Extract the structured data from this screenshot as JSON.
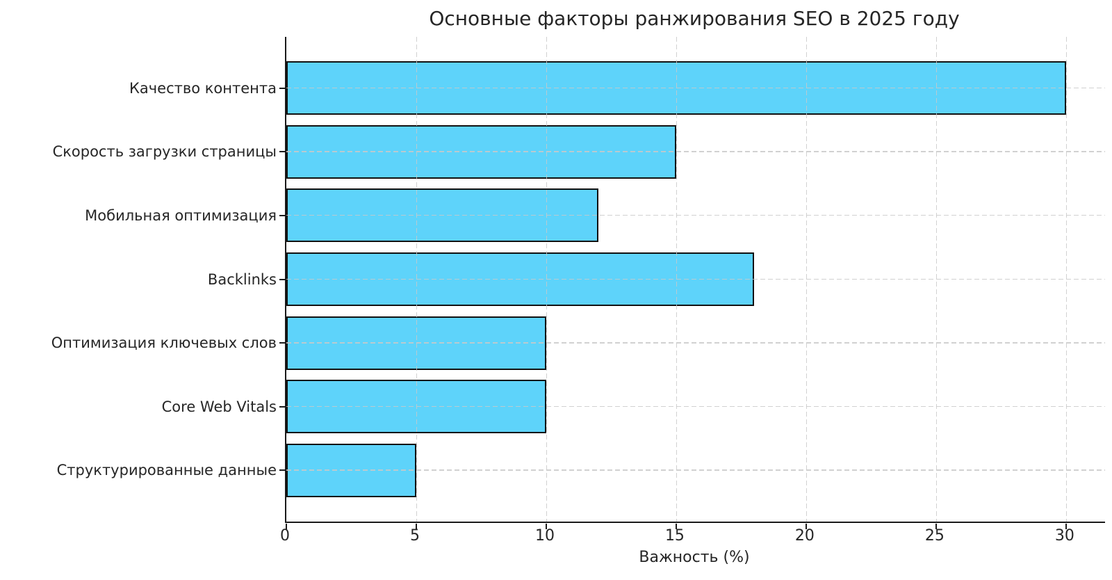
{
  "chart_data": {
    "type": "bar",
    "orientation": "horizontal",
    "title": "Основные факторы ранжирования SEO в 2025 году",
    "xlabel": "Важность (%)",
    "ylabel": "",
    "categories": [
      "Качество контента",
      "Скорость загрузки страницы",
      "Мобильная оптимизация",
      "Backlinks",
      "Оптимизация ключевых слов",
      "Core Web Vitals",
      "Структурированные данные"
    ],
    "values": [
      30,
      15,
      12,
      18,
      10,
      10,
      5
    ],
    "xticks": [
      0,
      5,
      10,
      15,
      20,
      25,
      30
    ],
    "xlim": [
      0,
      31.5
    ],
    "grid": true,
    "grid_style": "dashed",
    "legend": "none",
    "bar_color": "#5ed3fa",
    "bar_edge_color": "#111111",
    "grid_color": "#c9c9c9",
    "text_color": "#262626",
    "background": "#ffffff"
  }
}
